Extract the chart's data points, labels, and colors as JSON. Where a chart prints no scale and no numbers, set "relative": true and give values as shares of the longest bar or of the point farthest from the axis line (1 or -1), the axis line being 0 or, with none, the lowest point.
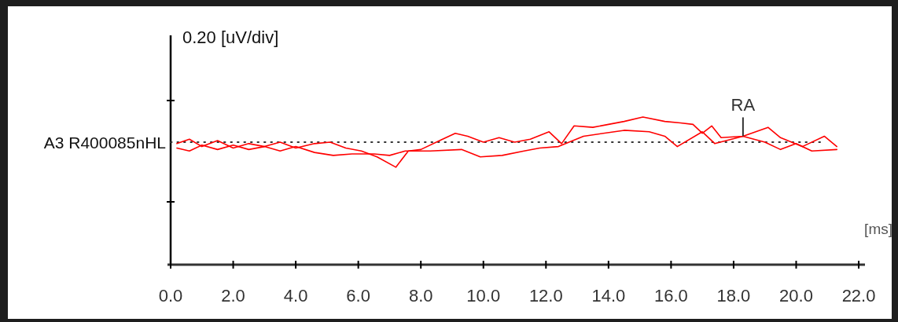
{
  "chart_data": {
    "type": "line",
    "relative": true,
    "ylabel": "0.20 [uV/div]",
    "xlabel": "[ms]",
    "xlim": [
      0,
      22.2
    ],
    "xticks": [
      {
        "value": 0,
        "label": "0.0"
      },
      {
        "value": 2,
        "label": "2.0"
      },
      {
        "value": 4,
        "label": "4.0"
      },
      {
        "value": 6,
        "label": "6.0"
      },
      {
        "value": 8,
        "label": "8.0"
      },
      {
        "value": 10,
        "label": "10.0"
      },
      {
        "value": 12,
        "label": "12.0"
      },
      {
        "value": 14,
        "label": "14.0"
      },
      {
        "value": 16,
        "label": "16.0"
      },
      {
        "value": 18,
        "label": "18.0"
      },
      {
        "value": 20,
        "label": "20.0"
      },
      {
        "value": 22,
        "label": "22.0"
      }
    ],
    "grid": false,
    "line_style": "solid",
    "marker": "none",
    "ref_lines": [
      {
        "axis": "y",
        "value": 0.83,
        "label": "A3 R400085nHL",
        "line_style": "dotted",
        "color": "#333333"
      }
    ],
    "annotations": [
      {
        "text": "RA",
        "x": 18.3,
        "y": 0.87
      }
    ],
    "series": [
      {
        "color": "#ff0000",
        "x": [
          0.2,
          0.6,
          1.0,
          1.5,
          2.0,
          2.5,
          3.0,
          3.5,
          4.0,
          4.6,
          5.1,
          5.6,
          6.1,
          6.6,
          7.2,
          7.6,
          8.0,
          8.6,
          9.1,
          9.5,
          10.0,
          10.5,
          11.0,
          11.5,
          12.1,
          12.5,
          12.9,
          13.5,
          14.0,
          14.5,
          15.1,
          15.8,
          16.3,
          16.7,
          17.0,
          17.3,
          17.6,
          18.3,
          19.1,
          19.5,
          20.2,
          20.9,
          21.3
        ],
        "values": [
          0.82,
          0.85,
          0.8,
          0.84,
          0.79,
          0.82,
          0.8,
          0.83,
          0.79,
          0.82,
          0.83,
          0.79,
          0.77,
          0.73,
          0.66,
          0.77,
          0.78,
          0.84,
          0.89,
          0.87,
          0.83,
          0.86,
          0.83,
          0.85,
          0.9,
          0.82,
          0.94,
          0.93,
          0.95,
          0.97,
          1.0,
          0.97,
          0.96,
          0.95,
          0.89,
          0.94,
          0.86,
          0.87,
          0.93,
          0.86,
          0.8,
          0.87,
          0.8
        ]
      },
      {
        "color": "#ff0000",
        "x": [
          0.2,
          0.6,
          1.0,
          1.5,
          2.0,
          2.5,
          3.0,
          3.5,
          4.0,
          4.6,
          5.2,
          5.8,
          6.5,
          7.0,
          7.5,
          8.3,
          9.3,
          9.9,
          10.6,
          11.3,
          11.8,
          12.4,
          13.2,
          14.5,
          15.3,
          15.8,
          16.2,
          17.0,
          17.4,
          18.3,
          19.0,
          19.5,
          20.0,
          20.5,
          21.3
        ],
        "values": [
          0.79,
          0.77,
          0.81,
          0.78,
          0.81,
          0.78,
          0.8,
          0.77,
          0.8,
          0.76,
          0.74,
          0.75,
          0.75,
          0.74,
          0.77,
          0.77,
          0.78,
          0.73,
          0.74,
          0.77,
          0.79,
          0.8,
          0.87,
          0.91,
          0.9,
          0.87,
          0.8,
          0.9,
          0.82,
          0.87,
          0.83,
          0.78,
          0.82,
          0.77,
          0.78
        ]
      }
    ]
  }
}
